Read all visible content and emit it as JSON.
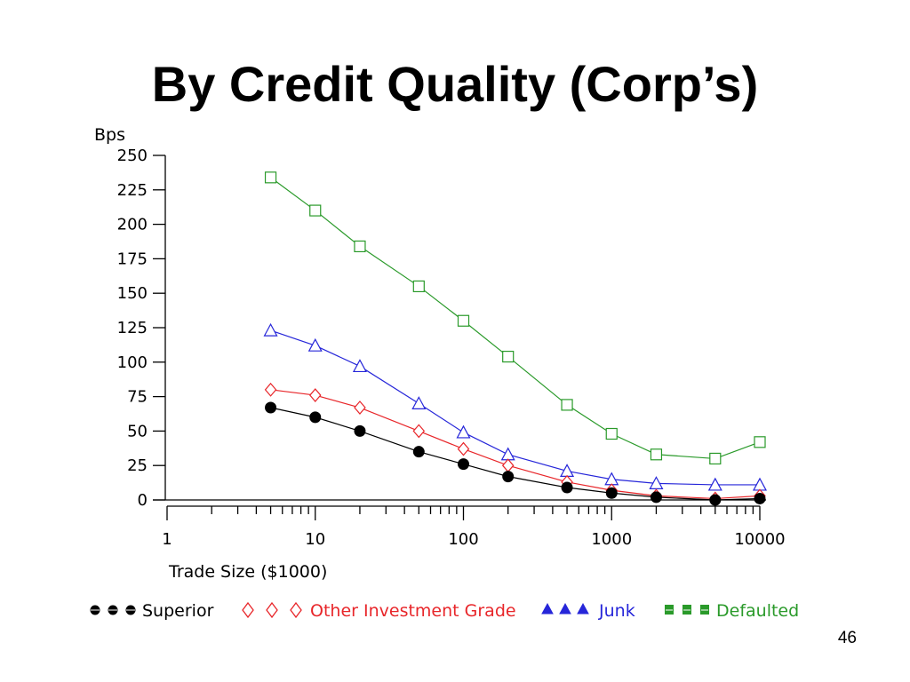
{
  "slide": {
    "title": "By Credit Quality (Corp’s)",
    "page_number": "46"
  },
  "chart_data": {
    "type": "line",
    "title": "",
    "xlabel": "Trade Size ($1000)",
    "ylabel": "Bps",
    "x_scale": "log",
    "xlim": [
      1,
      10000
    ],
    "ylim": [
      0,
      250
    ],
    "x_ticks": [
      1,
      10,
      100,
      1000,
      10000
    ],
    "x_tick_labels": [
      "1",
      "10",
      "100",
      "1000",
      "10000"
    ],
    "y_ticks": [
      0,
      25,
      50,
      75,
      100,
      125,
      150,
      175,
      200,
      225,
      250
    ],
    "y_tick_labels": [
      "0",
      "25",
      "50",
      "75",
      "100",
      "125",
      "150",
      "175",
      "200",
      "225",
      "250"
    ],
    "grid": false,
    "legend_position": "bottom",
    "x": [
      5,
      10,
      20,
      50,
      100,
      200,
      500,
      1000,
      2000,
      5000,
      10000
    ],
    "series": [
      {
        "name": "Superior",
        "marker": "filled-circle",
        "color": "#000000",
        "values": [
          67,
          60,
          50,
          35,
          26,
          17,
          9,
          5,
          2,
          0,
          1
        ]
      },
      {
        "name": "Other Investment Grade",
        "marker": "diamond",
        "color": "#e8262a",
        "values": [
          80,
          76,
          67,
          50,
          37,
          25,
          13,
          7,
          3,
          1,
          3
        ]
      },
      {
        "name": "Junk",
        "marker": "triangle",
        "color": "#2626d9",
        "values": [
          123,
          112,
          97,
          70,
          49,
          33,
          21,
          15,
          12,
          11,
          11
        ]
      },
      {
        "name": "Defaulted",
        "marker": "square",
        "color": "#2a9a2a",
        "values": [
          234,
          210,
          184,
          155,
          130,
          104,
          69,
          48,
          33,
          30,
          42
        ]
      }
    ]
  }
}
